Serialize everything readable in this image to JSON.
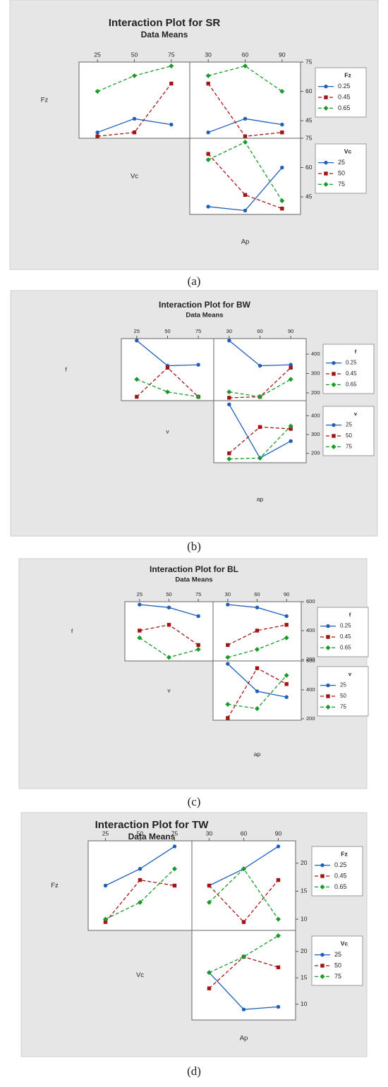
{
  "chart_data": [
    {
      "type": "interaction",
      "title": "Interaction Plot for SR",
      "subtitle": "Data Means",
      "caption": "(a)",
      "factors": [
        "Fz",
        "Vc",
        "Ap"
      ],
      "columns": [
        {
          "xticks": [
            25,
            50,
            75
          ],
          "xlim": [
            12.5,
            87.5
          ]
        },
        {
          "xticks": [
            30,
            60,
            90
          ],
          "xlim": [
            15,
            105
          ]
        }
      ],
      "rows": [
        {
          "legend_title": "Fz",
          "ylim": [
            36,
            75
          ],
          "yticks": [
            45,
            60,
            75
          ],
          "series": [
            {
              "name": "0.25",
              "color": "#1f5fb8",
              "linestyle": "solid",
              "values": [
                [
                  39,
                  46,
                  43
                ],
                [
                  39,
                  46,
                  43
                ]
              ]
            },
            {
              "name": "0.45",
              "color": "#a31515",
              "linestyle": "dashed",
              "values": [
                [
                  37,
                  39,
                  64
                ],
                [
                  64,
                  37,
                  39
                ]
              ]
            },
            {
              "name": "0.65",
              "color": "#1b9a2a",
              "linestyle": "dashed",
              "values": [
                [
                  60,
                  68,
                  73
                ],
                [
                  68,
                  73,
                  60
                ]
              ]
            }
          ]
        },
        {
          "legend_title": "Vc",
          "ylim": [
            36,
            75
          ],
          "yticks": [
            45,
            60,
            75
          ],
          "series": [
            {
              "name": "25",
              "color": "#1f5fb8",
              "linestyle": "solid",
              "values": [
                [
                  40,
                  38,
                  60
                ]
              ]
            },
            {
              "name": "50",
              "color": "#a31515",
              "linestyle": "dashed",
              "values": [
                [
                  67,
                  46,
                  39
                ]
              ]
            },
            {
              "name": "75",
              "color": "#1b9a2a",
              "linestyle": "dashed",
              "values": [
                [
                  64,
                  73,
                  43
                ]
              ]
            }
          ]
        }
      ]
    },
    {
      "type": "interaction",
      "title": "Interaction Plot for BW",
      "subtitle": "Data Means",
      "caption": "(b)",
      "factors": [
        "f",
        "v",
        "ap"
      ],
      "columns": [
        {
          "xticks": [
            25,
            50,
            75
          ],
          "xlim": [
            12.5,
            87.5
          ]
        },
        {
          "xticks": [
            30,
            60,
            90
          ],
          "xlim": [
            15,
            105
          ]
        }
      ],
      "rows": [
        {
          "legend_title": "f",
          "ylim": [
            160,
            480
          ],
          "yticks": [
            200,
            300,
            400
          ],
          "series": [
            {
              "name": "0.25",
              "color": "#1f5fb8",
              "linestyle": "solid",
              "values": [
                [
                  470,
                  340,
                  345
                ],
                [
                  470,
                  340,
                  345
                ]
              ]
            },
            {
              "name": "0.45",
              "color": "#a31515",
              "linestyle": "dashed",
              "values": [
                [
                  180,
                  330,
                  180
                ],
                [
                  175,
                  180,
                  330
                ]
              ]
            },
            {
              "name": "0.65",
              "color": "#1b9a2a",
              "linestyle": "dashed",
              "values": [
                [
                  270,
                  205,
                  180
                ],
                [
                  205,
                  180,
                  270
                ]
              ]
            }
          ]
        },
        {
          "legend_title": "v",
          "ylim": [
            150,
            480
          ],
          "yticks": [
            200,
            300,
            400
          ],
          "series": [
            {
              "name": "25",
              "color": "#1f5fb8",
              "linestyle": "solid",
              "values": [
                [
                  460,
                  175,
                  265
                ]
              ]
            },
            {
              "name": "50",
              "color": "#a31515",
              "linestyle": "dashed",
              "values": [
                [
                  200,
                  340,
                  330
                ]
              ]
            },
            {
              "name": "75",
              "color": "#1b9a2a",
              "linestyle": "dashed",
              "values": [
                [
                  170,
                  175,
                  345
                ]
              ]
            }
          ]
        }
      ]
    },
    {
      "type": "interaction",
      "title": "Interaction Plot for BL",
      "subtitle": "Data Means",
      "caption": "(c)",
      "factors": [
        "f",
        "v",
        "ap"
      ],
      "columns": [
        {
          "xticks": [
            25,
            50,
            75
          ],
          "xlim": [
            12.5,
            87.5
          ]
        },
        {
          "xticks": [
            30,
            60,
            90
          ],
          "xlim": [
            15,
            105
          ]
        }
      ],
      "rows": [
        {
          "legend_title": "f",
          "ylim": [
            190,
            600
          ],
          "yticks": [
            200,
            400,
            600
          ],
          "series": [
            {
              "name": "0.25",
              "color": "#1f5fb8",
              "linestyle": "solid",
              "values": [
                [
                  580,
                  560,
                  500
                ],
                [
                  580,
                  560,
                  500
                ]
              ]
            },
            {
              "name": "0.45",
              "color": "#a31515",
              "linestyle": "dashed",
              "values": [
                [
                  400,
                  440,
                  300
                ],
                [
                  300,
                  400,
                  440
                ]
              ]
            },
            {
              "name": "0.65",
              "color": "#1b9a2a",
              "linestyle": "dashed",
              "values": [
                [
                  350,
                  215,
                  270
                ],
                [
                  215,
                  270,
                  350
                ]
              ]
            }
          ]
        },
        {
          "legend_title": "v",
          "ylim": [
            190,
            600
          ],
          "yticks": [
            200,
            400,
            600
          ],
          "series": [
            {
              "name": "25",
              "color": "#1f5fb8",
              "linestyle": "solid",
              "values": [
                [
                  580,
                  390,
                  350
                ]
              ]
            },
            {
              "name": "50",
              "color": "#a31515",
              "linestyle": "dashed",
              "values": [
                [
                  205,
                  550,
                  440
                ]
              ]
            },
            {
              "name": "75",
              "color": "#1b9a2a",
              "linestyle": "dashed",
              "values": [
                [
                  300,
                  270,
                  500
                ]
              ]
            }
          ]
        }
      ]
    },
    {
      "type": "interaction",
      "title": "Interaction Plot for TW",
      "subtitle": "Data Means",
      "caption": "(d)",
      "factors": [
        "Fz",
        "Vc",
        "Ap"
      ],
      "columns": [
        {
          "xticks": [
            25,
            50,
            75
          ],
          "xlim": [
            12.5,
            87.5
          ]
        },
        {
          "xticks": [
            30,
            60,
            90
          ],
          "xlim": [
            15,
            105
          ]
        }
      ],
      "rows": [
        {
          "legend_title": "Fz",
          "ylim": [
            8,
            24
          ],
          "yticks": [
            10,
            15,
            20
          ],
          "series": [
            {
              "name": "0.25",
              "color": "#1f5fb8",
              "linestyle": "solid",
              "values": [
                [
                  16,
                  19,
                  23
                ],
                [
                  16,
                  19,
                  23
                ]
              ]
            },
            {
              "name": "0.45",
              "color": "#a31515",
              "linestyle": "dashed",
              "values": [
                [
                  9.5,
                  17,
                  16
                ],
                [
                  16,
                  9.5,
                  17
                ]
              ]
            },
            {
              "name": "0.65",
              "color": "#1b9a2a",
              "linestyle": "dashed",
              "values": [
                [
                  10,
                  13,
                  19
                ],
                [
                  13,
                  19,
                  10
                ]
              ]
            }
          ]
        },
        {
          "legend_title": "Vc",
          "ylim": [
            7,
            24
          ],
          "yticks": [
            10,
            15,
            20
          ],
          "series": [
            {
              "name": "25",
              "color": "#1f5fb8",
              "linestyle": "solid",
              "values": [
                [
                  16,
                  9,
                  9.5
                ]
              ]
            },
            {
              "name": "50",
              "color": "#a31515",
              "linestyle": "dashed",
              "values": [
                [
                  13,
                  19,
                  17
                ]
              ]
            },
            {
              "name": "75",
              "color": "#1b9a2a",
              "linestyle": "dashed",
              "values": [
                [
                  16,
                  19,
                  23
                ]
              ]
            }
          ]
        }
      ]
    }
  ]
}
